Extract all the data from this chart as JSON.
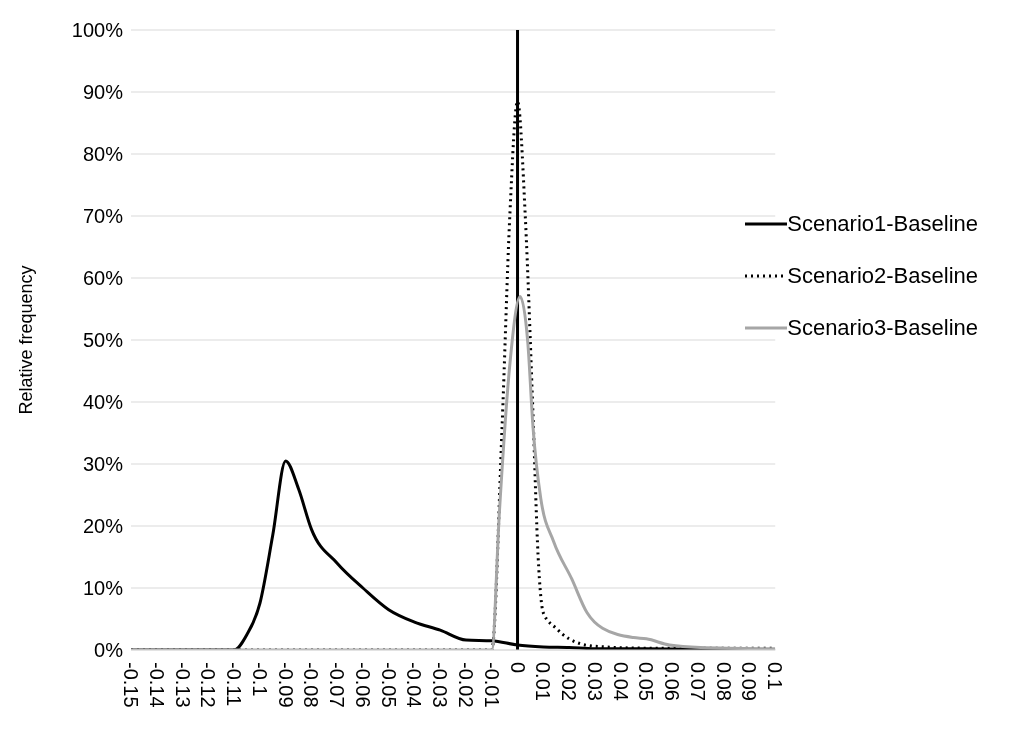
{
  "chart_data": {
    "type": "line",
    "ylabel": "Relative frequency",
    "xlim": [
      -0.15,
      0.1
    ],
    "xticks": [
      -0.15,
      -0.14,
      -0.13,
      -0.12,
      -0.11,
      -0.1,
      -0.09,
      -0.08,
      -0.07,
      -0.06,
      -0.05,
      -0.04,
      -0.03,
      -0.02,
      -0.01,
      0,
      0.01,
      0.02,
      0.03,
      0.04,
      0.05,
      0.06,
      0.07,
      0.08,
      0.09,
      0.1
    ],
    "ylim": [
      0,
      100
    ],
    "yticks": [
      {
        "value": 0,
        "label": "0%"
      },
      {
        "value": 10,
        "label": "10%"
      },
      {
        "value": 20,
        "label": "20%"
      },
      {
        "value": 30,
        "label": "30%"
      },
      {
        "value": 40,
        "label": "40%"
      },
      {
        "value": 50,
        "label": "50%"
      },
      {
        "value": 60,
        "label": "60%"
      },
      {
        "value": 70,
        "label": "70%"
      },
      {
        "value": 80,
        "label": "80%"
      },
      {
        "value": 90,
        "label": "90%"
      },
      {
        "value": 100,
        "label": "100%"
      }
    ],
    "grid": "y",
    "legend": "right",
    "marker": "none",
    "ref_lines": [
      {
        "axis": "x",
        "value": 0,
        "color": "#000000"
      }
    ],
    "series": [
      {
        "name": "Scenario1-Baseline",
        "color": "#000000",
        "line_style": "solid",
        "x": [
          -0.15,
          -0.12,
          -0.11,
          -0.105,
          -0.1,
          -0.095,
          -0.09,
          -0.085,
          -0.08,
          -0.07,
          -0.06,
          -0.05,
          -0.04,
          -0.03,
          -0.02,
          -0.01,
          0,
          0.01,
          0.02,
          0.03,
          0.05,
          0.07,
          0.1
        ],
        "values": [
          0,
          0,
          0,
          2.5,
          7.5,
          18.5,
          30.5,
          26,
          19.5,
          14,
          10,
          6.5,
          4.5,
          3.2,
          1.6,
          1.5,
          0.8,
          0.5,
          0.4,
          0.2,
          0.2,
          0.1,
          0
        ]
      },
      {
        "name": "Scenario2-Baseline",
        "color": "#000000",
        "line_style": "dotted",
        "x": [
          -0.15,
          -0.01,
          -0.006,
          -0.003,
          0,
          0.003,
          0.006,
          0.008,
          0.01,
          0.015,
          0.02,
          0.03,
          0.05,
          0.1
        ],
        "values": [
          0,
          0,
          36,
          70,
          88.5,
          70,
          38,
          15,
          6,
          3.5,
          1.8,
          0.6,
          0.3,
          0.3
        ]
      },
      {
        "name": "Scenario3-Baseline",
        "color": "#a6a6a6",
        "line_style": "solid",
        "x": [
          -0.15,
          -0.01,
          -0.007,
          -0.003,
          0.001,
          0.004,
          0.006,
          0.009,
          0.014,
          0.021,
          0.027,
          0.033,
          0.045,
          0.05,
          0.059,
          0.071,
          0.1
        ],
        "values": [
          0,
          0,
          22.5,
          46,
          57,
          49.5,
          36,
          24.5,
          17.5,
          11.5,
          6,
          3.5,
          2,
          1.8,
          0.8,
          0.4,
          0.2
        ]
      }
    ]
  }
}
